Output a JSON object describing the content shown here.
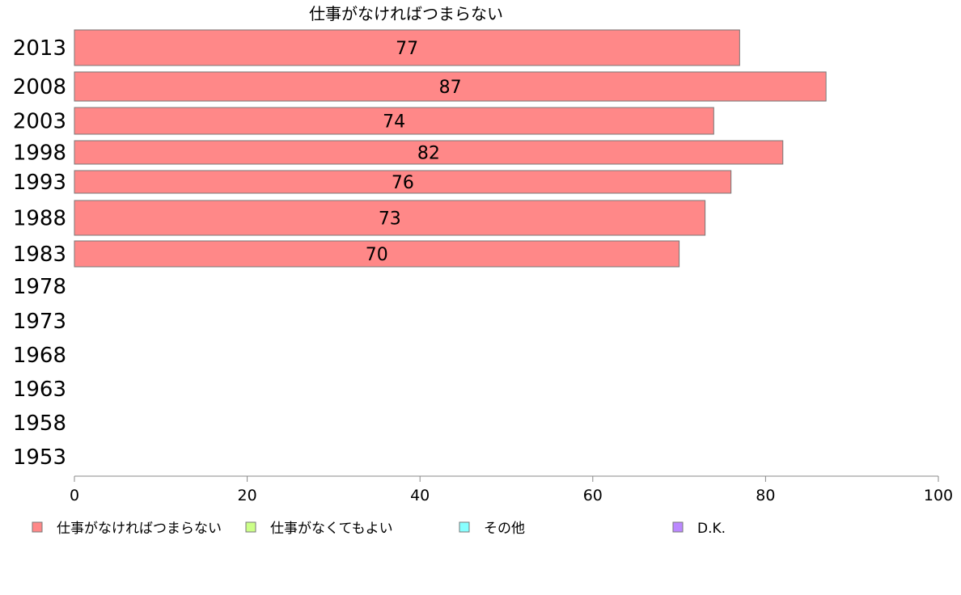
{
  "chart_data": {
    "type": "bar",
    "orientation": "horizontal",
    "title": "仕事がなければつまらない",
    "categories": [
      "2013",
      "2008",
      "2003",
      "1998",
      "1993",
      "1988",
      "1983",
      "1978",
      "1973",
      "1968",
      "1963",
      "1958",
      "1953"
    ],
    "series": [
      {
        "name": "仕事がなければつまらない",
        "color": "#ff8888",
        "values": [
          77,
          87,
          74,
          82,
          76,
          73,
          70,
          null,
          null,
          null,
          null,
          null,
          null
        ]
      }
    ],
    "data_labels": [
      "77",
      "87",
      "74",
      "82",
      "76",
      "73",
      "70",
      "",
      "",
      "",
      "",
      "",
      ""
    ],
    "xlim": [
      0,
      100
    ],
    "xticks": [
      "0",
      "20",
      "40",
      "60",
      "80",
      "100"
    ],
    "grid": false,
    "legend_position": "bottom",
    "legend": [
      {
        "label": "仕事がなければつまらない",
        "color": "#ff8888"
      },
      {
        "label": "仕事がなくてもよい",
        "color": "#ccff88"
      },
      {
        "label": "その他",
        "color": "#88ffff"
      },
      {
        "label": "D.K.",
        "color": "#bb88ff"
      }
    ]
  }
}
